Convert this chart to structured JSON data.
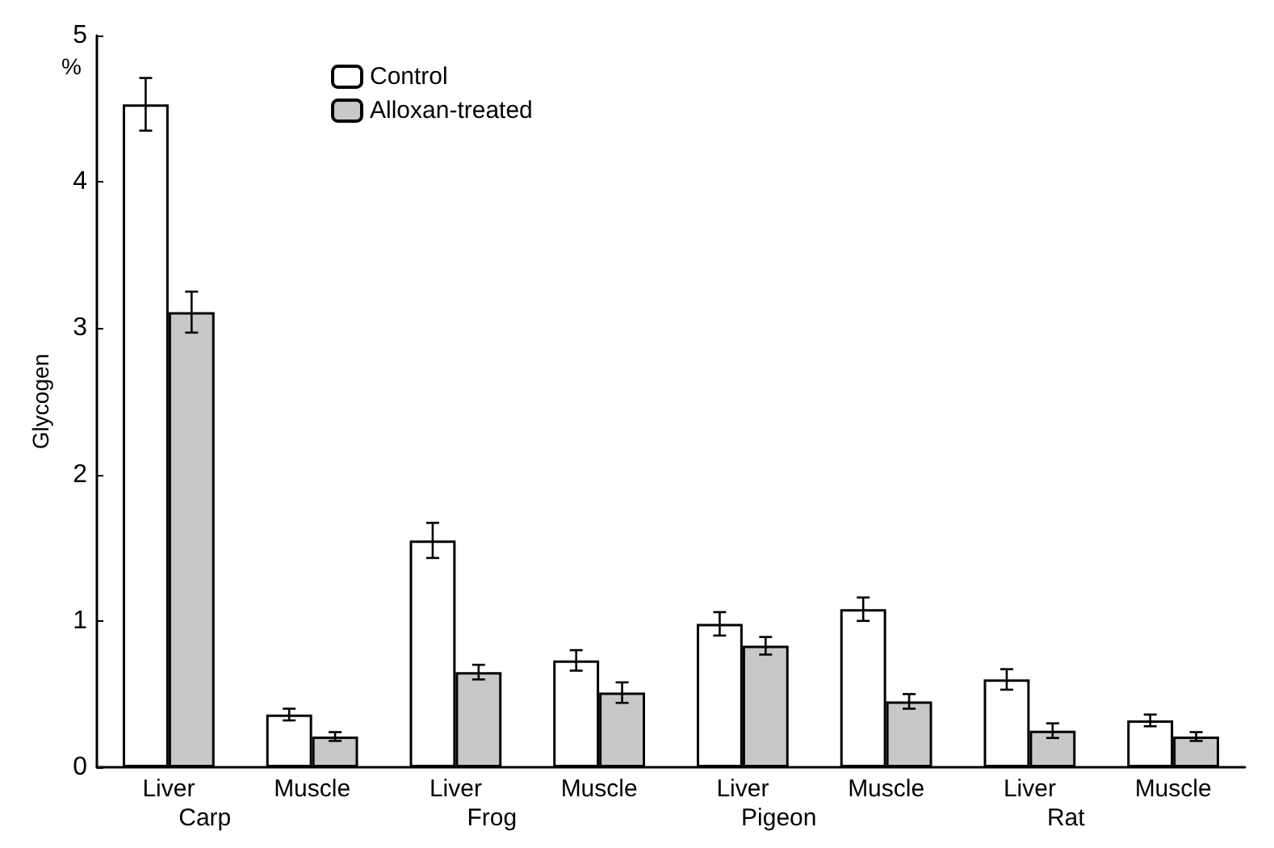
{
  "chart_data": {
    "type": "bar",
    "ylabel": "Glycogen",
    "categories": [
      "Liver",
      "Muscle",
      "Liver",
      "Muscle",
      "Liver",
      "Muscle",
      "Liver",
      "Muscle"
    ],
    "series": [
      {
        "name": "Control",
        "color": "#ffffff",
        "values": [
          4.53,
          0.36,
          1.55,
          0.73,
          0.98,
          1.08,
          0.6,
          0.32
        ],
        "errors": [
          0.18,
          0.04,
          0.12,
          0.07,
          0.08,
          0.08,
          0.07,
          0.04
        ]
      },
      {
        "name": "Alloxan-treated",
        "color": "#c8c8c8",
        "values": [
          3.11,
          0.21,
          0.65,
          0.51,
          0.83,
          0.45,
          0.25,
          0.21
        ],
        "errors": [
          0.14,
          0.03,
          0.05,
          0.07,
          0.06,
          0.05,
          0.05,
          0.03
        ]
      }
    ],
    "annotations": [
      "%",
      "Carp",
      "Frog",
      "Pigeon",
      "Rat"
    ],
    "ylim": [
      0,
      5
    ],
    "yticks": [
      0,
      1,
      2,
      3,
      4,
      5
    ],
    "grid": false,
    "legend": "top left"
  }
}
